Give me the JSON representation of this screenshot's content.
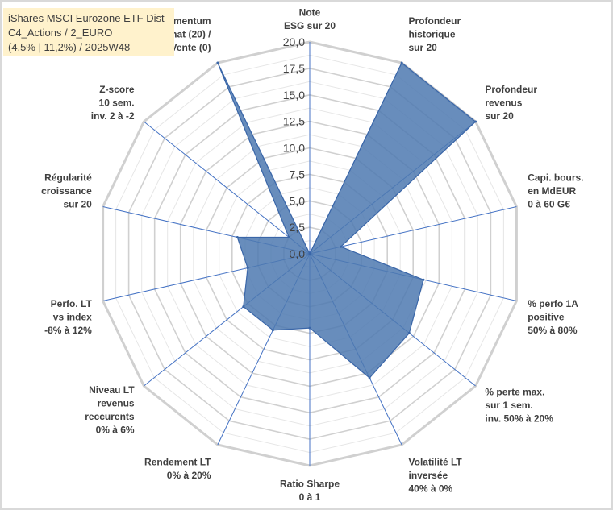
{
  "title_box": {
    "line1": "iShares MSCI Eurozone ETF Dist",
    "line2": "C4_Actions / 2_EURO",
    "line3": "(4,5% | 11,2%) / 2025W48"
  },
  "colors": {
    "fill": "#4e79b0",
    "line": "#3a66a8",
    "grid": "#d9d9d9",
    "axis": "#4472c4",
    "title_bg": "#fff2cc"
  },
  "chart_data": {
    "type": "radar",
    "title": "iShares MSCI Eurozone ETF Dist",
    "subtitle": "C4_Actions / 2_EURO (4,5% | 11,2%) / 2025W48",
    "rmin": 0,
    "rmax": 20,
    "ticks": [
      "0,0",
      "2,5",
      "5,0",
      "7,5",
      "10,0",
      "12,5",
      "15,0",
      "17,5",
      "20,0"
    ],
    "grid": true,
    "categories": [
      "Note ESG sur 20",
      "Profondeur historique sur 20",
      "Profondeur revenus sur 20",
      "Capi. bours. en MdEUR 0 à 60 G€",
      "% perfo 1A positive 50% à 80%",
      "% perte max. sur 1 sem. inv. 50% à 20%",
      "Volatilité LT inversée 40% à 0%",
      "Ratio Sharpe 0 à 1",
      "Rendement LT 0% à 20%",
      "Niveau LT revenus reccurents 0% à 6%",
      "Perfo. LT vs index -8% à 12%",
      "Régularité croissance sur 20",
      "Z-score 10 sem. inv. 2 à -2",
      "Momentum Achat (20) / Vente (0)"
    ],
    "axis_label_lines": [
      [
        "Note",
        "ESG sur 20"
      ],
      [
        "Profondeur",
        "historique",
        "sur 20"
      ],
      [
        "Profondeur",
        "revenus",
        "sur 20"
      ],
      [
        "Capi. bours.",
        "en MdEUR",
        "0 à 60 G€"
      ],
      [
        "% perfo 1A",
        "positive",
        "50% à 80%"
      ],
      [
        "% perte max.",
        "sur 1 sem.",
        "inv. 50% à 20%"
      ],
      [
        "Volatilité LT",
        "inversée",
        "40% à 0%"
      ],
      [
        "Ratio Sharpe",
        "0 à 1"
      ],
      [
        "Rendement LT",
        "0% à 20%"
      ],
      [
        "Niveau LT",
        "revenus",
        "reccurents",
        "0% à 6%"
      ],
      [
        "Perfo. LT",
        "vs index",
        "-8% à 12%"
      ],
      [
        "Régularité",
        "croissance",
        "sur 20"
      ],
      [
        "Z-score",
        "10 sem.",
        "inv. 2 à -2"
      ],
      [
        "Momentum",
        "Achat (20) /",
        "Vente (0)"
      ]
    ],
    "series": [
      {
        "values": [
          0,
          20,
          20,
          3,
          11,
          12,
          13,
          7,
          8,
          8,
          6,
          7,
          2.5,
          20
        ]
      }
    ]
  }
}
